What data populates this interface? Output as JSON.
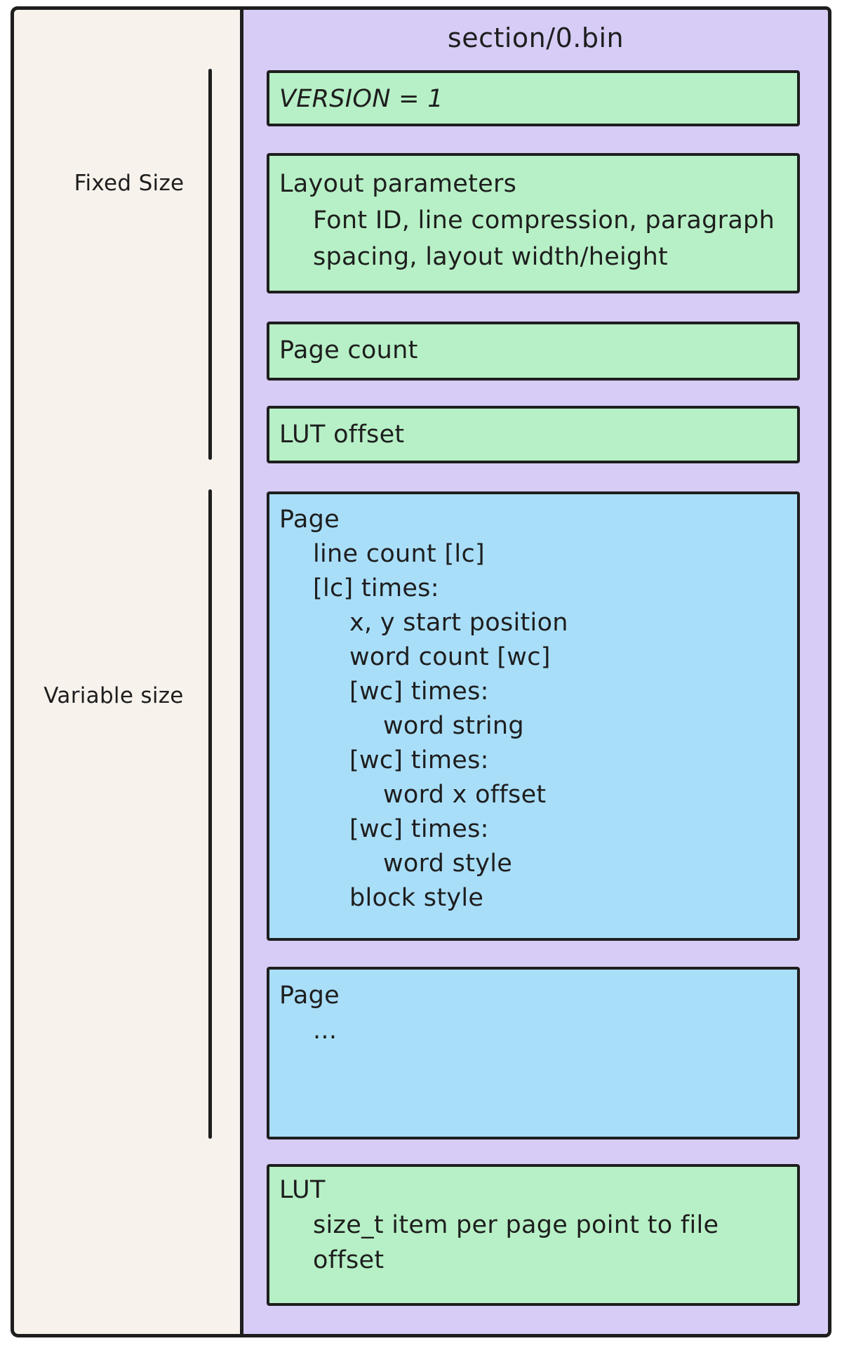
{
  "title": "section/0.bin",
  "colors": {
    "stroke": "#1e1e1e",
    "cream": "#f7f2ec",
    "purple": "#d7ccf6",
    "green": "#b7f0c6",
    "blue": "#a9def9"
  },
  "left_panel": {
    "brackets": [
      {
        "id": "fixed",
        "label": "Fixed Size"
      },
      {
        "id": "variable",
        "label": "Variable size"
      }
    ]
  },
  "file_layout": {
    "boxes": [
      {
        "id": "version",
        "kind": "green",
        "lines": [
          {
            "text": "VERSION = 1",
            "indent": 0,
            "italic": true
          }
        ]
      },
      {
        "id": "layout-parameters",
        "kind": "green",
        "lines": [
          {
            "text": "Layout parameters",
            "indent": 0
          },
          {
            "text": "Font ID, line compression, paragraph",
            "indent": 1
          },
          {
            "text": "spacing, layout width/height",
            "indent": 1
          }
        ]
      },
      {
        "id": "page-count",
        "kind": "green",
        "lines": [
          {
            "text": "Page count",
            "indent": 0
          }
        ]
      },
      {
        "id": "lut-offset",
        "kind": "green",
        "lines": [
          {
            "text": "LUT offset",
            "indent": 0
          }
        ]
      },
      {
        "id": "page-detail",
        "kind": "blue",
        "lines": [
          {
            "text": "Page",
            "indent": 0
          },
          {
            "text": "line count [lc]",
            "indent": 1
          },
          {
            "text": "[lc] times:",
            "indent": 1
          },
          {
            "text": "x, y start position",
            "indent": 2
          },
          {
            "text": "word count [wc]",
            "indent": 2
          },
          {
            "text": "[wc] times:",
            "indent": 2
          },
          {
            "text": "word string",
            "indent": 3
          },
          {
            "text": "[wc] times:",
            "indent": 2
          },
          {
            "text": "word x offset",
            "indent": 3
          },
          {
            "text": "[wc] times:",
            "indent": 2
          },
          {
            "text": "word style",
            "indent": 3
          },
          {
            "text": "block style",
            "indent": 2
          }
        ]
      },
      {
        "id": "page-more",
        "kind": "blue",
        "lines": [
          {
            "text": "Page",
            "indent": 0
          },
          {
            "text": "...",
            "indent": 1
          }
        ]
      },
      {
        "id": "lut",
        "kind": "green",
        "lines": [
          {
            "text": "LUT",
            "indent": 0
          },
          {
            "text": "size_t item per page point to file",
            "indent": 1
          },
          {
            "text": "offset",
            "indent": 1
          }
        ]
      }
    ]
  }
}
